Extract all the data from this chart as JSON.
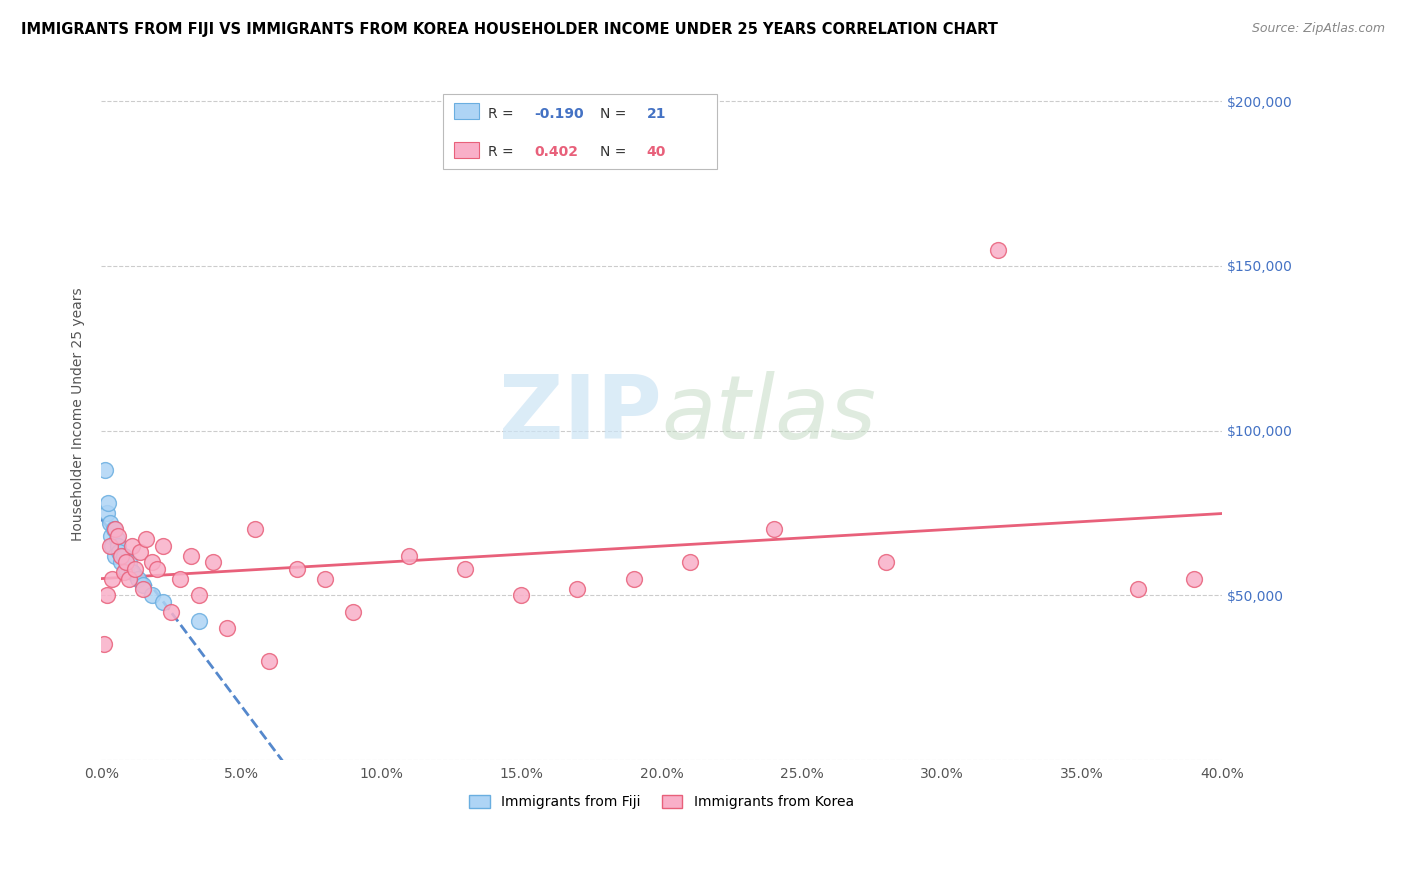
{
  "title": "IMMIGRANTS FROM FIJI VS IMMIGRANTS FROM KOREA HOUSEHOLDER INCOME UNDER 25 YEARS CORRELATION CHART",
  "source": "Source: ZipAtlas.com",
  "ylabel": "Householder Income Under 25 years",
  "xmin": 0.0,
  "xmax": 40.0,
  "ymin": 0,
  "ymax": 210000,
  "fiji_color": "#aed4f5",
  "korea_color": "#f9afc8",
  "fiji_edge_color": "#6aaee0",
  "korea_edge_color": "#e8607a",
  "fiji_line_color": "#5588cc",
  "korea_line_color": "#e8607a",
  "fiji_r": "-0.190",
  "fiji_n": "21",
  "korea_r": "0.402",
  "korea_n": "40",
  "legend_label_fiji": "Immigrants from Fiji",
  "legend_label_korea": "Immigrants from Korea",
  "watermark_zip": "ZIP",
  "watermark_atlas": "atlas",
  "ytick_color": "#4472c4",
  "fiji_x": [
    0.15,
    0.2,
    0.25,
    0.3,
    0.35,
    0.4,
    0.45,
    0.5,
    0.55,
    0.6,
    0.65,
    0.7,
    0.8,
    0.9,
    1.0,
    1.1,
    1.3,
    1.5,
    1.8,
    2.2,
    3.5
  ],
  "fiji_y": [
    88000,
    75000,
    78000,
    72000,
    68000,
    65000,
    70000,
    62000,
    67000,
    65000,
    63000,
    60000,
    62000,
    58000,
    60000,
    57000,
    55000,
    53000,
    50000,
    48000,
    42000
  ],
  "korea_x": [
    0.1,
    0.2,
    0.3,
    0.4,
    0.5,
    0.6,
    0.7,
    0.8,
    0.9,
    1.0,
    1.1,
    1.2,
    1.4,
    1.5,
    1.6,
    1.8,
    2.0,
    2.2,
    2.5,
    2.8,
    3.2,
    3.5,
    4.0,
    4.5,
    5.5,
    6.0,
    7.0,
    8.0,
    9.0,
    11.0,
    13.0,
    15.0,
    17.0,
    19.0,
    21.0,
    24.0,
    28.0,
    32.0,
    37.0,
    39.0
  ],
  "korea_y": [
    35000,
    50000,
    65000,
    55000,
    70000,
    68000,
    62000,
    57000,
    60000,
    55000,
    65000,
    58000,
    63000,
    52000,
    67000,
    60000,
    58000,
    65000,
    45000,
    55000,
    62000,
    50000,
    60000,
    40000,
    70000,
    30000,
    58000,
    55000,
    45000,
    62000,
    58000,
    50000,
    52000,
    55000,
    60000,
    70000,
    60000,
    155000,
    52000,
    55000
  ]
}
